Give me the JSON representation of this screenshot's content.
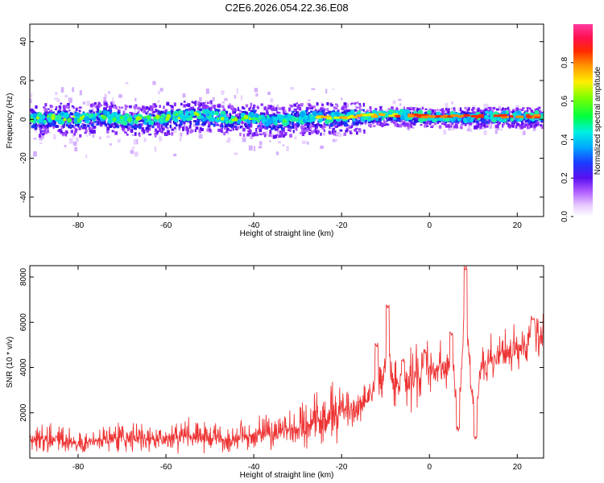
{
  "figure": {
    "title": "C2E6.2026.054.22.36.E08"
  },
  "chart_data": [
    {
      "type": "heatmap",
      "xlabel": "Height of straight line (km)",
      "ylabel": "Frequency (Hz)",
      "xlim": [
        -91,
        26
      ],
      "ylim": [
        -50,
        49
      ],
      "x_ticks": [
        -80,
        -60,
        -40,
        -20,
        0,
        20
      ],
      "y_ticks": [
        -40,
        -20,
        0,
        20,
        40
      ],
      "colorbar": {
        "label": "Normalized spectral amplitude",
        "range": [
          0,
          1
        ],
        "ticks": [
          "0.0",
          "0.2",
          "0.4",
          "0.6",
          "0.8"
        ],
        "tick_values": [
          0.0,
          0.2,
          0.4,
          0.6,
          0.8
        ],
        "colormap": "rainbow (white-violet-blue-cyan-green-yellow-red-magenta)"
      },
      "band": {
        "description": "energy concentrated near 0-2 Hz across all heights",
        "center_hz": [
          [
            -90,
            0
          ],
          [
            -85,
            1
          ],
          [
            -80,
            0
          ],
          [
            -75,
            2
          ],
          [
            -70,
            0
          ],
          [
            -65,
            0
          ],
          [
            -60,
            1
          ],
          [
            -55,
            2
          ],
          [
            -50,
            2
          ],
          [
            -45,
            0
          ],
          [
            -40,
            1
          ],
          [
            -35,
            -1
          ],
          [
            -30,
            1
          ],
          [
            -25,
            1
          ],
          [
            -20,
            1
          ],
          [
            -15,
            2
          ],
          [
            -10,
            2
          ],
          [
            -5,
            2
          ],
          [
            0,
            1.5
          ],
          [
            5,
            1.5
          ],
          [
            10,
            1.5
          ],
          [
            15,
            1.5
          ],
          [
            20,
            1.5
          ],
          [
            25,
            1.5
          ]
        ],
        "peak_amplitude_region_km": [
          -30,
          26
        ]
      }
    },
    {
      "type": "line",
      "xlabel": "Height of straight line (km)",
      "ylabel": "SNR (10 * v/v)",
      "xlim": [
        -91,
        26
      ],
      "ylim": [
        0,
        8500
      ],
      "x_ticks": [
        -80,
        -60,
        -40,
        -20,
        0,
        20
      ],
      "y_ticks": [
        2000,
        4000,
        6000,
        8000
      ],
      "series": [
        {
          "color": "#ee3333",
          "trend": [
            [
              -91,
              800
            ],
            [
              -85,
              800
            ],
            [
              -80,
              600
            ],
            [
              -75,
              800
            ],
            [
              -70,
              900
            ],
            [
              -65,
              800
            ],
            [
              -60,
              900
            ],
            [
              -55,
              1000
            ],
            [
              -50,
              900
            ],
            [
              -45,
              800
            ],
            [
              -40,
              1000
            ],
            [
              -35,
              1100
            ],
            [
              -30,
              1300
            ],
            [
              -25,
              1600
            ],
            [
              -20,
              2000
            ],
            [
              -15,
              2400
            ],
            [
              -12,
              2800
            ],
            [
              -10,
              3000
            ],
            [
              -5,
              3100
            ],
            [
              -2,
              3400
            ],
            [
              0,
              3900
            ],
            [
              3,
              4000
            ],
            [
              5,
              3500
            ],
            [
              8,
              3800
            ],
            [
              10,
              3200
            ],
            [
              12,
              4000
            ],
            [
              15,
              4500
            ],
            [
              18,
              4600
            ],
            [
              20,
              4800
            ],
            [
              23,
              5200
            ],
            [
              26,
              5500
            ]
          ],
          "spikes": [
            [
              -12,
              5000
            ],
            [
              -9.5,
              6700
            ],
            [
              -6,
              4300
            ],
            [
              -1,
              4700
            ],
            [
              5,
              5500
            ],
            [
              8.2,
              8400
            ],
            [
              10.5,
              900
            ],
            [
              6.5,
              1300
            ],
            [
              23.5,
              6200
            ]
          ]
        }
      ]
    }
  ]
}
